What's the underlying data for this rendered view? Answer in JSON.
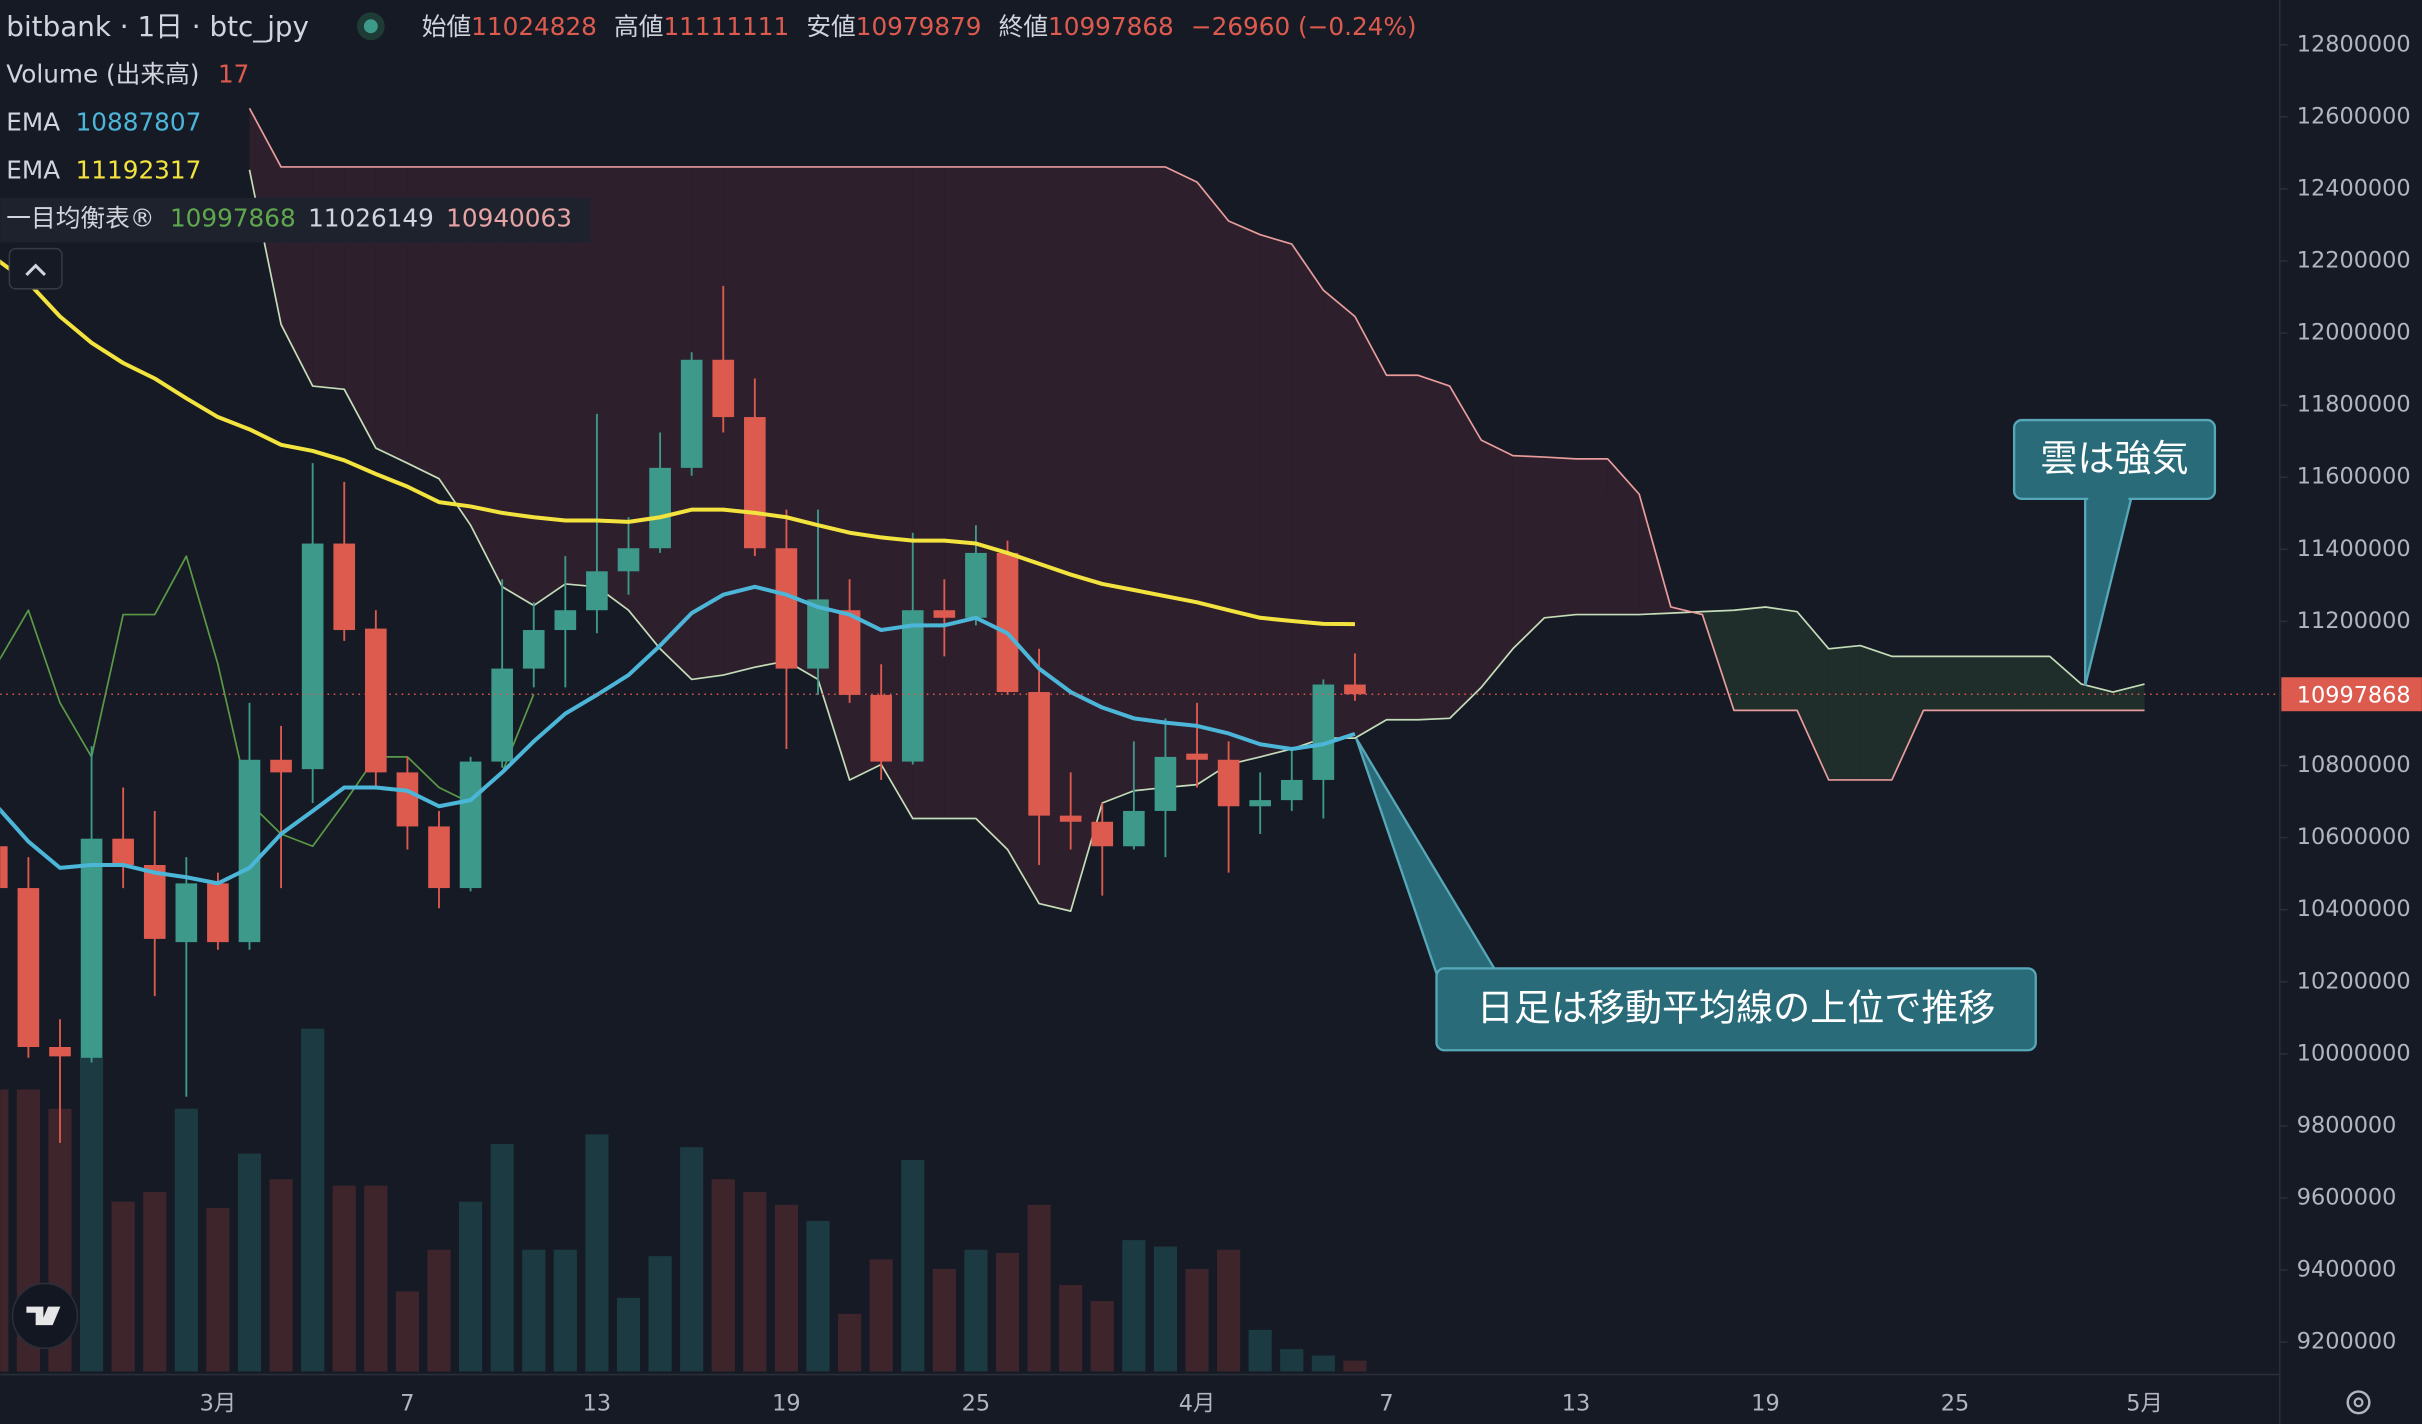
{
  "chart_data": {
    "type": "candlestick",
    "title": "bitbank · 1日 · btc_jpy",
    "ohlc_labels": [
      "始値",
      "高値",
      "安値",
      "終値"
    ],
    "change": "−26960 (−0.24%)",
    "categories": [
      null,
      null,
      null,
      null,
      null,
      null,
      null,
      "3月",
      null,
      null,
      null,
      null,
      null,
      "7",
      null,
      null,
      null,
      null,
      null,
      "13",
      null,
      null,
      null,
      null,
      null,
      "19",
      null,
      null,
      null,
      null,
      null,
      "25",
      null,
      null,
      null,
      null,
      null,
      null,
      "4月",
      null,
      null,
      null,
      null,
      null,
      "7",
      null,
      null,
      null,
      null,
      null,
      "13",
      null,
      null,
      null,
      null,
      null,
      "19",
      null,
      null,
      null,
      null,
      null,
      "25",
      null,
      null,
      null,
      null,
      null,
      "5月"
    ],
    "open": [
      10576000,
      10460000,
      10019000,
      9989000,
      10597000,
      10524000,
      10310000,
      10473000,
      10310000,
      10816000,
      10790000,
      11416000,
      11180000,
      10781000,
      10631000,
      10460000,
      10811000,
      11069000,
      11176000,
      11231000,
      11339000,
      11403000,
      11626000,
      11926000,
      11767000,
      11403000,
      11069000,
      11231000,
      10996000,
      10811000,
      11231000,
      11210000,
      11390000,
      11004000,
      10661000,
      10644000,
      10576000,
      10674000,
      10833000,
      10816000,
      10687000,
      10704000,
      10760000,
      11024828,
      null,
      null,
      null,
      null,
      null,
      null,
      null,
      null,
      null,
      null,
      null,
      null,
      null,
      null,
      null,
      null,
      null,
      null,
      null,
      null,
      null,
      null,
      null,
      null,
      null
    ],
    "high": [
      10610000,
      10546000,
      10096000,
      10854000,
      10739000,
      10674000,
      10546000,
      10503000,
      10974000,
      10910000,
      11639000,
      11587000,
      11231000,
      10824000,
      10674000,
      10824000,
      11317000,
      11253000,
      11381000,
      11776000,
      11489000,
      11724000,
      11947000,
      12131000,
      11874000,
      11510000,
      11510000,
      11317000,
      11081000,
      11446000,
      11317000,
      11467000,
      11424000,
      11124000,
      10781000,
      10696000,
      10867000,
      10931000,
      10974000,
      10867000,
      10781000,
      10846000,
      11039000,
      11111111,
      null,
      null,
      null,
      null,
      null,
      null,
      null,
      null,
      null,
      null,
      null,
      null,
      null,
      null,
      null,
      null,
      null,
      null,
      null,
      null,
      null,
      null,
      null,
      null,
      null
    ],
    "low": [
      10439000,
      9989000,
      9753000,
      9976000,
      10460000,
      10160000,
      9881000,
      10289000,
      10289000,
      10460000,
      10696000,
      11146000,
      10739000,
      10567000,
      10404000,
      10451000,
      10794000,
      11017000,
      11017000,
      11167000,
      11274000,
      11390000,
      11604000,
      11724000,
      11381000,
      10846000,
      10996000,
      10974000,
      10760000,
      10803000,
      11103000,
      11189000,
      10996000,
      10524000,
      10567000,
      10439000,
      10567000,
      10546000,
      10739000,
      10503000,
      10610000,
      10674000,
      10653000,
      10979879,
      null,
      null,
      null,
      null,
      null,
      null,
      null,
      null,
      null,
      null,
      null,
      null,
      null,
      null,
      null,
      null,
      null,
      null,
      null,
      null,
      null,
      null,
      null,
      null,
      null
    ],
    "close": [
      10460000,
      10019000,
      9993000,
      10597000,
      10524000,
      10319000,
      10473000,
      10310000,
      10816000,
      10781000,
      11416000,
      11176000,
      10781000,
      10631000,
      10460000,
      10811000,
      11069000,
      11176000,
      11231000,
      11339000,
      11403000,
      11626000,
      11926000,
      11767000,
      11403000,
      11069000,
      11261000,
      10996000,
      10811000,
      11231000,
      11210000,
      11390000,
      11004000,
      10661000,
      10644000,
      10576000,
      10674000,
      10824000,
      10816000,
      10687000,
      10704000,
      10760000,
      11024828,
      10997868,
      null,
      null,
      null,
      null,
      null,
      null,
      null,
      null,
      null,
      null,
      null,
      null,
      null,
      null,
      null,
      null,
      null,
      null,
      null,
      null,
      null,
      null,
      null,
      null,
      null
    ],
    "up_color": "#3d9a8b",
    "down_color": "#dd5a4e",
    "volume": {
      "name": "Volume (出来高)",
      "up_color": "#1c3a41",
      "down_color": "#3e252c",
      "values": [
        440,
        440,
        410,
        490,
        265,
        280,
        410,
        255,
        340,
        300,
        535,
        290,
        290,
        125,
        190,
        265,
        355,
        190,
        190,
        370,
        115,
        180,
        350,
        300,
        280,
        260,
        235,
        90,
        175,
        330,
        160,
        190,
        185,
        260,
        135,
        110,
        205,
        195,
        160,
        190,
        65,
        35,
        25,
        17,
        null,
        null,
        null,
        null,
        null,
        null,
        null,
        null,
        null,
        null,
        null,
        null,
        null,
        null,
        null,
        null,
        null,
        null,
        null,
        null,
        null,
        null,
        null,
        null,
        null
      ]
    },
    "series": [
      {
        "name": "EMA",
        "color": "#4cb6d9",
        "values": [
          10687000,
          10589000,
          10516000,
          10524000,
          10524000,
          10503000,
          10490000,
          10473000,
          10516000,
          10610000,
          10674000,
          10739000,
          10739000,
          10730000,
          10687000,
          10704000,
          10781000,
          10867000,
          10944000,
          10996000,
          11051000,
          11133000,
          11223000,
          11274000,
          11296000,
          11274000,
          11240000,
          11219000,
          11176000,
          11189000,
          11189000,
          11210000,
          11167000,
          11069000,
          11004000,
          10961000,
          10931000,
          10919000,
          10910000,
          10889000,
          10859000,
          10846000,
          10859000,
          10887807,
          null,
          null,
          null,
          null,
          null,
          null,
          null,
          null,
          null,
          null,
          null,
          null,
          null,
          null,
          null,
          null,
          null,
          null,
          null,
          null,
          null,
          null,
          null,
          null,
          null
        ]
      },
      {
        "name": "EMA",
        "color": "#f3e33f",
        "values": [
          12204000,
          12140000,
          12046000,
          11973000,
          11917000,
          11874000,
          11819000,
          11767000,
          11733000,
          11690000,
          11673000,
          11647000,
          11609000,
          11574000,
          11531000,
          11519000,
          11501000,
          11489000,
          11480000,
          11480000,
          11476000,
          11489000,
          11510000,
          11510000,
          11501000,
          11489000,
          11467000,
          11446000,
          11433000,
          11424000,
          11424000,
          11416000,
          11390000,
          11360000,
          11330000,
          11304000,
          11287000,
          11270000,
          11253000,
          11231000,
          11210000,
          11201000,
          11193000,
          11192317,
          null,
          null,
          null,
          null,
          null,
          null,
          null,
          null,
          null,
          null,
          null,
          null,
          null,
          null,
          null,
          null,
          null,
          null,
          null,
          null,
          null,
          null,
          null,
          null,
          null
        ]
      }
    ],
    "ichimoku": {
      "name": "一目均衡表®",
      "legend_values": [
        10997868,
        11026149,
        10940063
      ],
      "legend_colors": [
        "#5fa84e",
        "#d1d4dc",
        "#e8a4a4"
      ],
      "cloud_up_color": "#1f2e2b",
      "cloud_down_color": "#2e1f2c",
      "span_a": {
        "color": "#c4dcb8",
        "values": [
          null,
          null,
          null,
          null,
          null,
          null,
          null,
          null,
          12453000,
          12024000,
          11853000,
          11844000,
          11681000,
          11639000,
          11596000,
          11467000,
          11296000,
          11244000,
          11304000,
          11296000,
          11231000,
          11124000,
          11039000,
          11051000,
          11073000,
          11090000,
          11039000,
          10760000,
          10803000,
          10653000,
          10653000,
          10653000,
          10567000,
          10417000,
          10396000,
          10696000,
          10730000,
          10739000,
          10747000,
          10803000,
          10824000,
          10846000,
          10876000,
          10876000,
          10927000,
          10927000,
          10931000,
          11017000,
          11124000,
          11210000,
          11219000,
          11219000,
          11219000,
          11223000,
          11227000,
          11231000,
          11240000,
          11227000,
          11124000,
          11133000,
          11103000,
          11103000,
          11103000,
          11103000,
          11103000,
          11103000,
          11026000,
          11004000,
          11026000
        ]
      },
      "span_b": {
        "color": "#e89c9c",
        "values": [
          null,
          null,
          null,
          null,
          null,
          null,
          null,
          null,
          12624000,
          12461000,
          12461000,
          12461000,
          12461000,
          12461000,
          12461000,
          12461000,
          12461000,
          12461000,
          12461000,
          12461000,
          12461000,
          12461000,
          12461000,
          12461000,
          12461000,
          12461000,
          12461000,
          12461000,
          12461000,
          12461000,
          12461000,
          12461000,
          12461000,
          12461000,
          12461000,
          12461000,
          12461000,
          12461000,
          12419000,
          12311000,
          12273000,
          12247000,
          12119000,
          12046000,
          11883000,
          11883000,
          11853000,
          11703000,
          11660000,
          11656000,
          11651000,
          11651000,
          11553000,
          11240000,
          11219000,
          10953000,
          10953000,
          10953000,
          10760000,
          10760000,
          10760000,
          10953000,
          10953000,
          10953000,
          10953000,
          10953000,
          10953000,
          10953000,
          10953000
        ]
      },
      "lagging": {
        "color": "#5a9a46",
        "values": [
          11081000,
          11231000,
          10974000,
          10824000,
          11219000,
          11219000,
          11381000,
          11081000,
          10696000,
          10610000,
          10576000,
          10696000,
          10824000,
          10824000,
          10739000,
          10696000,
          10781000,
          10997868,
          null,
          null,
          null,
          null,
          null,
          null,
          null,
          null,
          null,
          null,
          null,
          null,
          null,
          null,
          null,
          null,
          null,
          null,
          null,
          null,
          null,
          null,
          null,
          null,
          null,
          null,
          null,
          null,
          null,
          null,
          null,
          null,
          null,
          null,
          null,
          null,
          null,
          null,
          null,
          null,
          null,
          null,
          null,
          null,
          null,
          null,
          null,
          null,
          null,
          null,
          null
        ]
      }
    },
    "ylim": [
      9200000,
      12800000
    ],
    "yticks": [
      9200000,
      9400000,
      9600000,
      9800000,
      10000000,
      10200000,
      10400000,
      10600000,
      10800000,
      11000000,
      11200000,
      11400000,
      11600000,
      11800000,
      12000000,
      12200000,
      12400000,
      12600000,
      12800000
    ],
    "grid": false,
    "annotations": [
      {
        "text": "雲は強気"
      },
      {
        "text": "日足は移動平均線の上位で推移"
      }
    ]
  }
}
